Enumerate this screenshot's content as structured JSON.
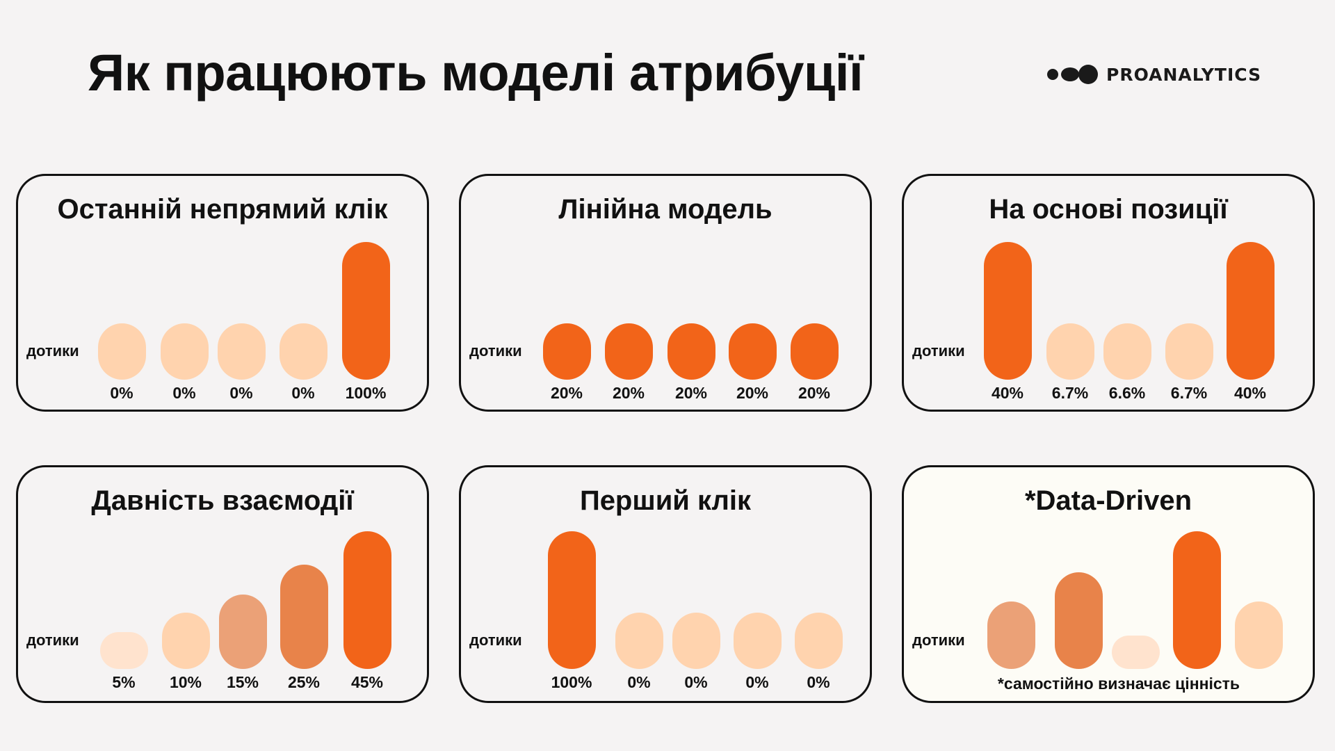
{
  "header": {
    "title": "Як працюють моделі атрибуції",
    "logo_text": "PROANALYTICS"
  },
  "colors": {
    "dark": "#F26419",
    "medium": "#E8834A",
    "medium_light": "#EBA177",
    "light": "#FFD3AE",
    "lightest": "#FFE3CE",
    "border": "#111111"
  },
  "axis_label": "дотики",
  "models": [
    {
      "title": "Останній непрямий клік",
      "bars": [
        {
          "label": "0%",
          "level": 0.41,
          "color": "#FFD3AE"
        },
        {
          "label": "0%",
          "level": 0.41,
          "color": "#FFD3AE"
        },
        {
          "label": "0%",
          "level": 0.41,
          "color": "#FFD3AE"
        },
        {
          "label": "0%",
          "level": 0.41,
          "color": "#FFD3AE"
        },
        {
          "label": "100%",
          "level": 1.0,
          "color": "#F26419"
        }
      ]
    },
    {
      "title": "Лінійна модель",
      "bars": [
        {
          "label": "20%",
          "level": 0.41,
          "color": "#F26419"
        },
        {
          "label": "20%",
          "level": 0.41,
          "color": "#F26419"
        },
        {
          "label": "20%",
          "level": 0.41,
          "color": "#F26419"
        },
        {
          "label": "20%",
          "level": 0.41,
          "color": "#F26419"
        },
        {
          "label": "20%",
          "level": 0.41,
          "color": "#F26419"
        }
      ]
    },
    {
      "title": "На основі позиції",
      "bars": [
        {
          "label": "40%",
          "level": 1.0,
          "color": "#F26419"
        },
        {
          "label": "6.7%",
          "level": 0.41,
          "color": "#FFD3AE"
        },
        {
          "label": "6.6%",
          "level": 0.41,
          "color": "#FFD3AE"
        },
        {
          "label": "6.7%",
          "level": 0.41,
          "color": "#FFD3AE"
        },
        {
          "label": "40%",
          "level": 1.0,
          "color": "#F26419"
        }
      ]
    },
    {
      "title": "Давність взаємодії",
      "bars": [
        {
          "label": "5%",
          "level": 0.27,
          "color": "#FFE3CE"
        },
        {
          "label": "10%",
          "level": 0.41,
          "color": "#FFD3AE"
        },
        {
          "label": "15%",
          "level": 0.54,
          "color": "#EBA177"
        },
        {
          "label": "25%",
          "level": 0.76,
          "color": "#E8834A"
        },
        {
          "label": "45%",
          "level": 1.0,
          "color": "#F26419"
        }
      ]
    },
    {
      "title": "Перший клік",
      "bars": [
        {
          "label": "100%",
          "level": 1.0,
          "color": "#F26419"
        },
        {
          "label": "0%",
          "level": 0.41,
          "color": "#FFD3AE"
        },
        {
          "label": "0%",
          "level": 0.41,
          "color": "#FFD3AE"
        },
        {
          "label": "0%",
          "level": 0.41,
          "color": "#FFD3AE"
        },
        {
          "label": "0%",
          "level": 0.41,
          "color": "#FFD3AE"
        }
      ]
    },
    {
      "title": "*Data-Driven",
      "note": "*самостійно визначає цінність",
      "bars": [
        {
          "level": 0.49,
          "color": "#EBA177"
        },
        {
          "level": 0.7,
          "color": "#E8834A"
        },
        {
          "level": 0.24,
          "color": "#FFE3CE"
        },
        {
          "level": 1.0,
          "color": "#F26419"
        },
        {
          "level": 0.49,
          "color": "#FFD3AE"
        }
      ]
    }
  ]
}
